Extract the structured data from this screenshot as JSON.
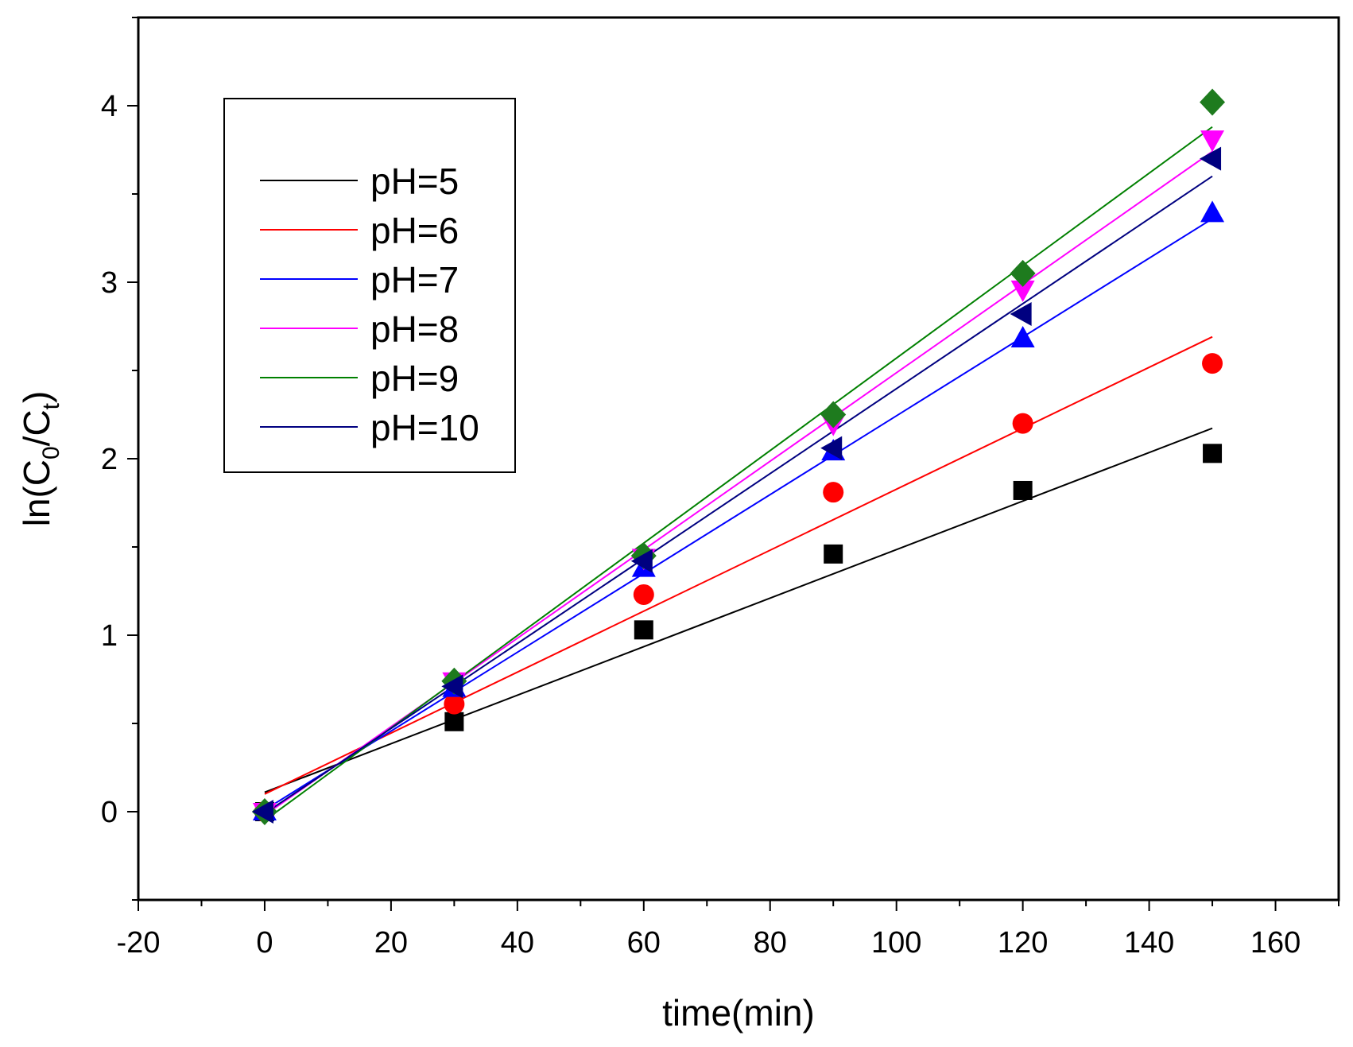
{
  "chart_data": {
    "type": "scatter",
    "xlabel": "time(min)",
    "ylabel": {
      "prefix": "ln(C",
      "sub0": "0",
      "mid": "/C",
      "subt": "t",
      "suffix": ")"
    },
    "xlim": [
      -20,
      170
    ],
    "ylim": [
      -0.5,
      4.5
    ],
    "xticks": [
      -20,
      0,
      20,
      40,
      60,
      80,
      100,
      120,
      140,
      160
    ],
    "yticks": [
      0,
      1,
      2,
      3,
      4
    ],
    "legend_position": "top-left",
    "grid": false,
    "x": [
      0,
      30,
      60,
      90,
      120,
      150
    ],
    "series": [
      {
        "name": "pH=5",
        "color": "#000000",
        "marker_color": "#000000",
        "marker": "square",
        "values": [
          0,
          0.51,
          1.03,
          1.46,
          1.82,
          2.03
        ],
        "fit": {
          "intercept": 0.11,
          "slope": 0.01375
        }
      },
      {
        "name": "pH=6",
        "color": "#ff0000",
        "marker_color": "#ff0000",
        "marker": "circle",
        "values": [
          0,
          0.61,
          1.23,
          1.81,
          2.2,
          2.54
        ],
        "fit": {
          "intercept": 0.1,
          "slope": 0.01727
        }
      },
      {
        "name": "pH=7",
        "color": "#0000ff",
        "marker_color": "#0000ff",
        "marker": "triangle-up",
        "values": [
          0,
          0.7,
          1.38,
          2.04,
          2.68,
          3.39
        ],
        "fit": {
          "intercept": 0.01,
          "slope": 0.02233
        }
      },
      {
        "name": "pH=8",
        "color": "#ff00ff",
        "marker_color": "#ff00ff",
        "marker": "triangle-down",
        "values": [
          0,
          0.74,
          1.44,
          2.2,
          2.96,
          3.81
        ],
        "fit": {
          "intercept": -0.02,
          "slope": 0.02507
        }
      },
      {
        "name": "pH=9",
        "color": "#008000",
        "marker_color": "#1e7b1e",
        "marker": "diamond",
        "values": [
          0,
          0.74,
          1.45,
          2.25,
          3.05,
          4.02
        ],
        "fit": {
          "intercept": -0.05,
          "slope": 0.0262
        }
      },
      {
        "name": "pH=10",
        "color": "#000080",
        "marker_color": "#000080",
        "marker": "triangle-left",
        "values": [
          0,
          0.71,
          1.42,
          2.06,
          2.82,
          3.7
        ],
        "fit": {
          "intercept": -0.01,
          "slope": 0.02407
        }
      }
    ]
  }
}
